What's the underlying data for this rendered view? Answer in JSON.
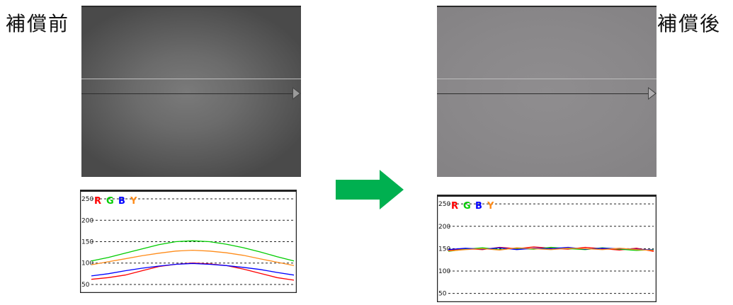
{
  "labels": {
    "before": "補償前",
    "after": "補償後"
  },
  "colors": {
    "R": "#ff0000",
    "G": "#00cc00",
    "B": "#0000ff",
    "Y": "#ff8c1a",
    "arrow": "#00b050"
  },
  "icons": {
    "transition": "right-arrow-icon"
  },
  "chart_data": [
    {
      "type": "line",
      "legend": [
        "R",
        "G",
        "B",
        "Y"
      ],
      "legend_placement": "top-left",
      "ylim": [
        40,
        255
      ],
      "yticks": [
        50,
        100,
        150,
        200,
        250
      ],
      "grid": "horizontal-dashed",
      "x": [
        0,
        1,
        2,
        3,
        4,
        5,
        6,
        7,
        8,
        9,
        10,
        11,
        12
      ],
      "series": [
        {
          "name": "R",
          "color": "#ff0000",
          "values": [
            62,
            66,
            72,
            82,
            92,
            97,
            100,
            98,
            94,
            86,
            76,
            66,
            60
          ]
        },
        {
          "name": "G",
          "color": "#00cc00",
          "values": [
            105,
            113,
            123,
            133,
            143,
            150,
            152,
            150,
            144,
            136,
            126,
            115,
            105
          ]
        },
        {
          "name": "B",
          "color": "#0000ff",
          "values": [
            70,
            75,
            82,
            88,
            93,
            97,
            99,
            97,
            94,
            90,
            85,
            78,
            72
          ]
        },
        {
          "name": "Y",
          "color": "#ff8c1a",
          "values": [
            96,
            103,
            110,
            117,
            123,
            128,
            130,
            128,
            124,
            118,
            110,
            102,
            94
          ]
        }
      ]
    },
    {
      "type": "line",
      "legend": [
        "R",
        "G",
        "B",
        "Y"
      ],
      "legend_placement": "top-left",
      "ylim": [
        40,
        255
      ],
      "yticks": [
        50,
        100,
        150,
        200,
        250
      ],
      "grid": "horizontal-dashed",
      "x": [
        0,
        1,
        2,
        3,
        4,
        5,
        6,
        7,
        8,
        9,
        10,
        11,
        12
      ],
      "series": [
        {
          "name": "R",
          "color": "#ff0000",
          "values": [
            146,
            150,
            148,
            153,
            150,
            154,
            151,
            149,
            153,
            150,
            147,
            151,
            144
          ]
        },
        {
          "name": "G",
          "color": "#00cc00",
          "values": [
            144,
            149,
            152,
            148,
            151,
            149,
            153,
            150,
            148,
            152,
            149,
            146,
            148
          ]
        },
        {
          "name": "B",
          "color": "#0000ff",
          "values": [
            148,
            151,
            149,
            152,
            148,
            151,
            150,
            153,
            149,
            151,
            150,
            149,
            147
          ]
        },
        {
          "name": "Y",
          "color": "#ff8c1a",
          "values": [
            145,
            148,
            150,
            147,
            152,
            150,
            148,
            151,
            150,
            148,
            151,
            148,
            146
          ]
        }
      ]
    }
  ]
}
